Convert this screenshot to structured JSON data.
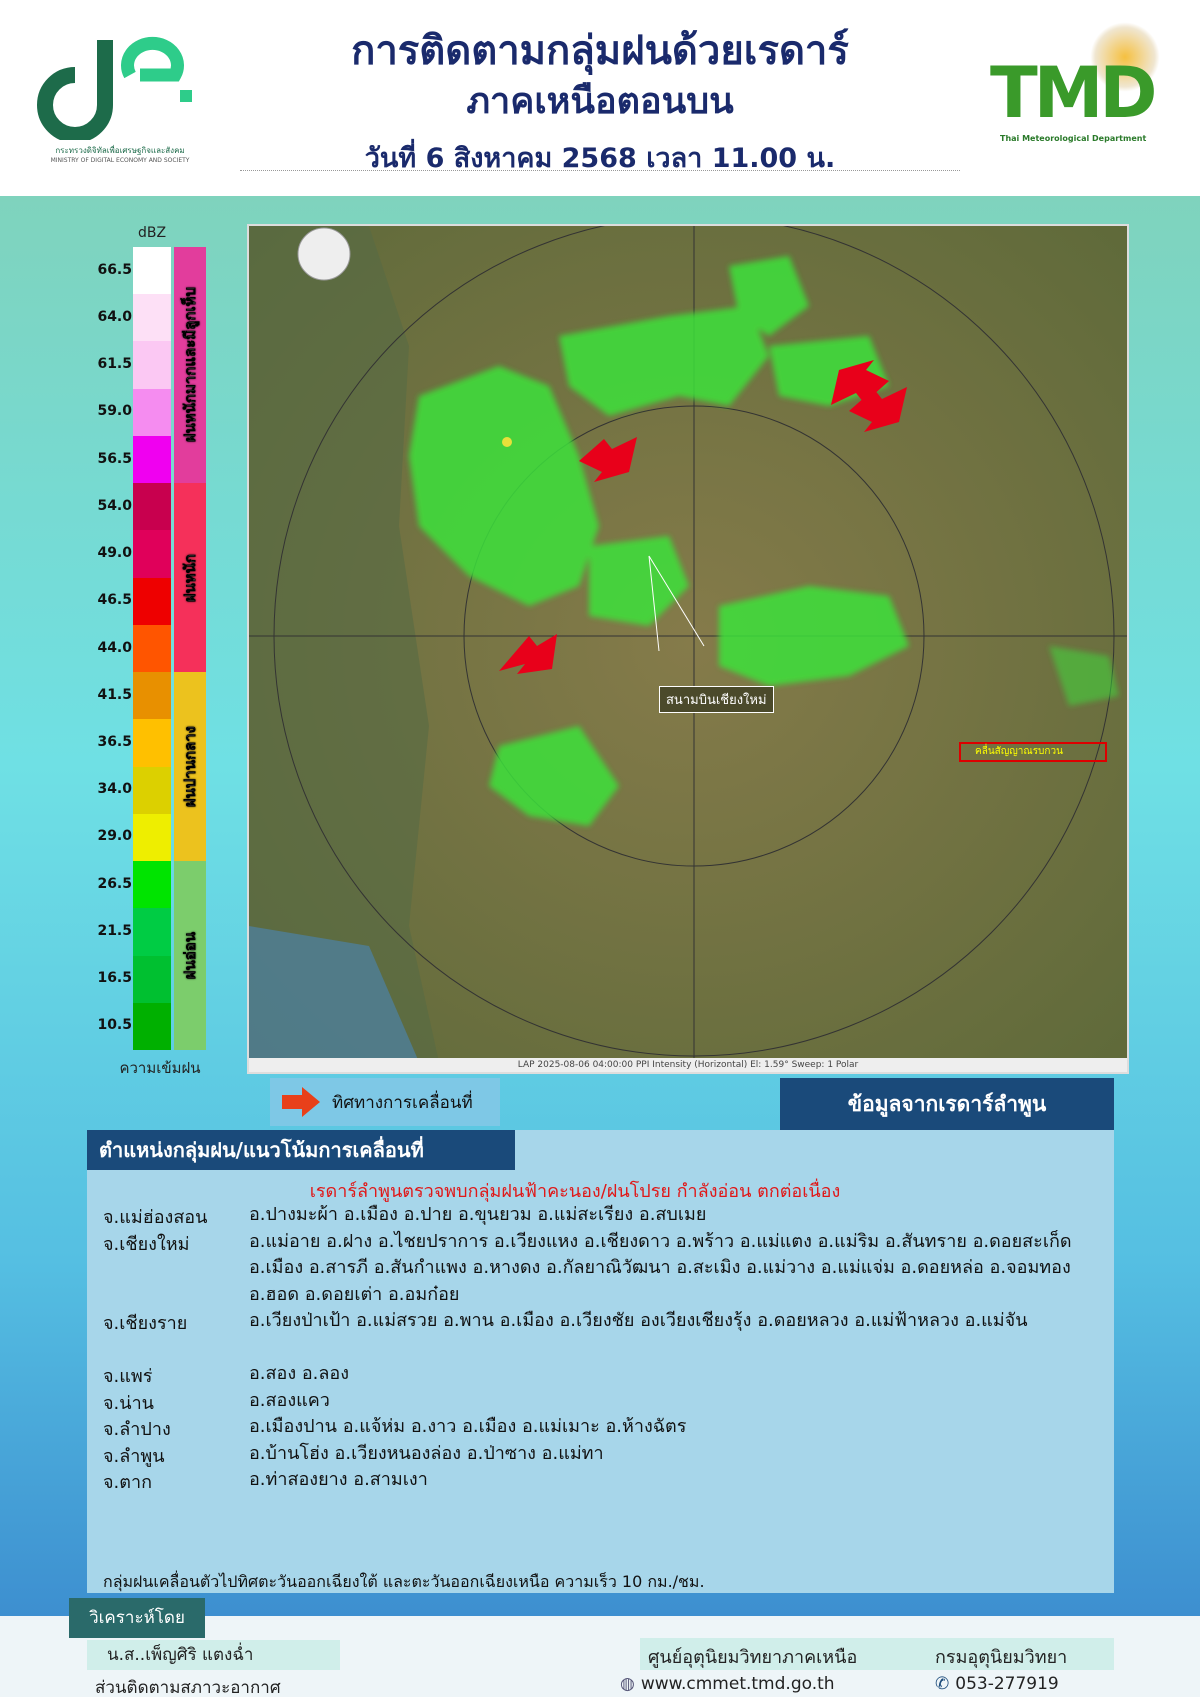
{
  "header": {
    "title_line1": "การติดตามกลุ่มฝนด้วยเรดาร์",
    "title_line2": "ภาคเหนือตอนบน",
    "date_line": "วันที่ 6 สิงหาคม 2568 เวลา 11.00 น.",
    "left_logo": {
      "org_th": "กระทรวงดิจิทัลเพื่อเศรษฐกิจและสังคม",
      "org_en": "MINISTRY OF DIGITAL ECONOMY AND SOCIETY"
    },
    "right_logo": {
      "text": "TMD",
      "subtitle": "Thai Meteorological Department"
    }
  },
  "legend": {
    "unit": "dBZ",
    "values": [
      "66.5",
      "64.0",
      "61.5",
      "59.0",
      "56.5",
      "54.0",
      "49.0",
      "46.5",
      "44.0",
      "41.5",
      "36.5",
      "34.0",
      "29.0",
      "26.5",
      "21.5",
      "16.5",
      "10.5"
    ],
    "colors": [
      "#ffffff",
      "#fde0f6",
      "#fbc8f3",
      "#f58cf0",
      "#f000f0",
      "#c8004e",
      "#e0005a",
      "#ee0000",
      "#ff5500",
      "#e89000",
      "#ffc000",
      "#dcd000",
      "#eeee00",
      "#00e400",
      "#00cc44",
      "#00c030",
      "#00b000"
    ],
    "categories": [
      {
        "label": "ฝนหนักมากและมีลูกเห็บ",
        "color": "#e23d9c"
      },
      {
        "label": "ฝนหนัก",
        "color": "#f5305a"
      },
      {
        "label": "ฝนปานกลาง",
        "color": "#ecc21e"
      },
      {
        "label": "ฝนอ่อน",
        "color": "#7ccd6c"
      }
    ],
    "footer": "ความเข้มฝน"
  },
  "map": {
    "airport_label": "สนามบินเชียงใหม่",
    "interference_label": "คลื่นสัญญาณรบกวน",
    "caption": "LAP 2025-08-06 04:00:00 PPI Intensity (Horizontal) El: 1.59°  Sweep: 1 Polar"
  },
  "movement_legend": {
    "label": "ทิศทางการเคลื่อนที่",
    "icon": "red-arrow-icon"
  },
  "source_banner": "ข้อมูลจากเรดาร์ลำพูน",
  "panel": {
    "title": "ตำแหน่งกลุ่มฝน/แนวโน้มการเคลื่อนที่",
    "headline": "เรดาร์ลำพูนตรวจพบกลุ่มฝนฟ้าคะนอง/ฝนโปรย กำลังอ่อน ตกต่อเนื่อง",
    "rows": [
      {
        "province": "จ.แม่ฮ่องสอน",
        "districts": "อ.ปางมะผ้า อ.เมือง อ.ปาย อ.ขุนยวม อ.แม่สะเรียง อ.สบเมย"
      },
      {
        "province": "จ.เชียงใหม่",
        "districts": "อ.แม่อาย อ.ฝาง อ.ไชยปราการ อ.เวียงแหง อ.เชียงดาว อ.พร้าว อ.แม่แตง อ.แม่ริม อ.สันทราย อ.ดอยสะเก็ด อ.เมือง อ.สารภี อ.สันกำแพง อ.หางดง อ.กัลยาณิวัฒนา อ.สะเมิง อ.แม่วาง อ.แม่แจ่ม อ.ดอยหล่อ อ.จอมทอง อ.ฮอด อ.ดอยเต่า อ.อมก๋อย"
      },
      {
        "province": "จ.เชียงราย",
        "districts": "อ.เวียงป่าเป้า อ.แม่สรวย อ.พาน อ.เมือง อ.เวียงชัย องเวียงเชียงรุ้ง อ.ดอยหลวง อ.แม่ฟ้าหลวง อ.แม่จัน"
      },
      {
        "province": "จ.แพร่",
        "districts": "อ.สอง อ.ลอง"
      },
      {
        "province": "จ.น่าน",
        "districts": "อ.สองแคว"
      },
      {
        "province": "จ.ลำปาง",
        "districts": "อ.เมืองปาน อ.แจ้ห่ม อ.งาว อ.เมือง อ.แม่เมาะ อ.ห้างฉัตร"
      },
      {
        "province": "จ.ลำพูน",
        "districts": "อ.บ้านโฮ่ง อ.เวียงหนองล่อง อ.ป่าซาง อ.แม่ทา"
      },
      {
        "province": "จ.ตาก",
        "districts": "อ.ท่าสองยาง อ.สามเงา"
      }
    ],
    "movement_note": "กลุ่มฝนเคลื่อนตัวไปทิศตะวันออกเฉียงใต้ และตะวันออกเฉียงเหนือ ความเร็ว 10 กม./ชม."
  },
  "footer": {
    "analyzed_by_label": "วิเคราะห์โดย",
    "analyst": "น.ส..เพ็ญศิริ  แตงฉ่ำ",
    "unit": "ส่วนติดตามสภาวะอากาศ",
    "center": "ศูนย์อุตุนิยมวิทยาภาคเหนือ",
    "department": "กรมอุตุนิยมวิทยา",
    "website": "www.cmmet.tmd.go.th",
    "phone": "053-277919"
  }
}
